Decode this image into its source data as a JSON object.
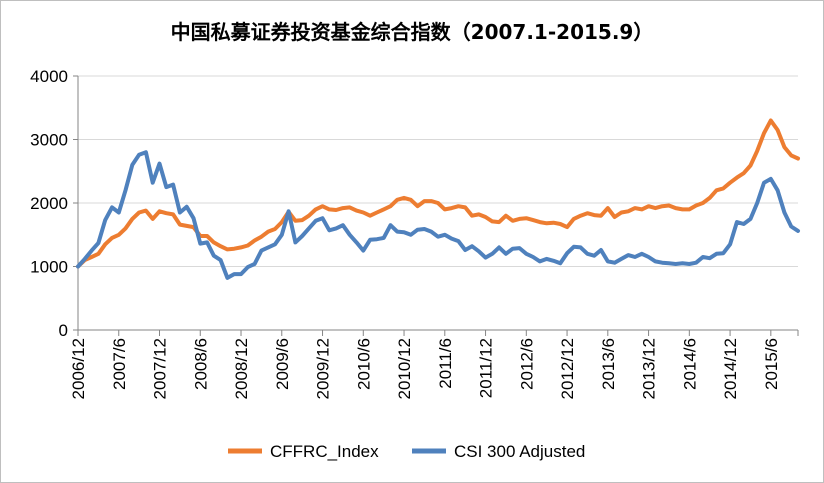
{
  "chart_data": {
    "type": "line",
    "title": "中国私募证券投资基金综合指数（2007.1-2015.9）",
    "xlabel": "",
    "ylabel": "",
    "ylim": [
      0,
      4000
    ],
    "yticks": [
      0,
      1000,
      2000,
      3000,
      4000
    ],
    "xtick_labels": [
      "2006/12",
      "2007/6",
      "2007/12",
      "2008/6",
      "2008/12",
      "2009/6",
      "2009/12",
      "2010/6",
      "2010/12",
      "2011/6",
      "2011/12",
      "2012/6",
      "2012/12",
      "2013/6",
      "2013/12",
      "2014/6",
      "2014/12",
      "2015/6"
    ],
    "x_start": "2006/12",
    "x_end": "2015/9",
    "grid": "horizontal",
    "legend_position": "bottom",
    "series": [
      {
        "name": "CFFRC_Index",
        "color": "#ED7D31",
        "values": [
          1000,
          1100,
          1150,
          1200,
          1350,
          1450,
          1500,
          1600,
          1750,
          1850,
          1880,
          1750,
          1870,
          1840,
          1820,
          1660,
          1640,
          1620,
          1480,
          1480,
          1380,
          1320,
          1270,
          1280,
          1300,
          1330,
          1410,
          1470,
          1550,
          1590,
          1700,
          1860,
          1720,
          1730,
          1800,
          1900,
          1950,
          1900,
          1890,
          1920,
          1930,
          1880,
          1850,
          1800,
          1850,
          1900,
          1950,
          2050,
          2080,
          2050,
          1950,
          2030,
          2030,
          2000,
          1900,
          1920,
          1950,
          1930,
          1800,
          1820,
          1780,
          1710,
          1700,
          1800,
          1720,
          1750,
          1760,
          1730,
          1700,
          1680,
          1690,
          1670,
          1620,
          1750,
          1800,
          1840,
          1810,
          1800,
          1920,
          1780,
          1850,
          1870,
          1920,
          1900,
          1950,
          1920,
          1950,
          1960,
          1920,
          1900,
          1900,
          1960,
          2000,
          2080,
          2200,
          2230,
          2320,
          2400,
          2470,
          2590,
          2820,
          3100,
          3300,
          3150,
          2880,
          2750,
          2700
        ]
      },
      {
        "name": "CSI 300 Adjusted",
        "color": "#4F81BD",
        "values": [
          1000,
          1120,
          1250,
          1370,
          1730,
          1930,
          1850,
          2200,
          2600,
          2760,
          2800,
          2320,
          2620,
          2250,
          2290,
          1850,
          1940,
          1760,
          1360,
          1380,
          1170,
          1100,
          820,
          880,
          880,
          990,
          1040,
          1250,
          1300,
          1350,
          1500,
          1870,
          1380,
          1480,
          1600,
          1720,
          1760,
          1570,
          1600,
          1650,
          1500,
          1380,
          1250,
          1420,
          1430,
          1450,
          1650,
          1550,
          1540,
          1500,
          1580,
          1590,
          1550,
          1470,
          1500,
          1440,
          1400,
          1260,
          1320,
          1240,
          1140,
          1200,
          1300,
          1200,
          1280,
          1290,
          1200,
          1150,
          1080,
          1120,
          1090,
          1050,
          1210,
          1310,
          1300,
          1200,
          1170,
          1260,
          1080,
          1060,
          1120,
          1180,
          1150,
          1200,
          1150,
          1080,
          1060,
          1050,
          1040,
          1050,
          1040,
          1060,
          1150,
          1130,
          1200,
          1210,
          1350,
          1700,
          1670,
          1750,
          2000,
          2320,
          2380,
          2200,
          1850,
          1630,
          1560
        ]
      }
    ]
  }
}
